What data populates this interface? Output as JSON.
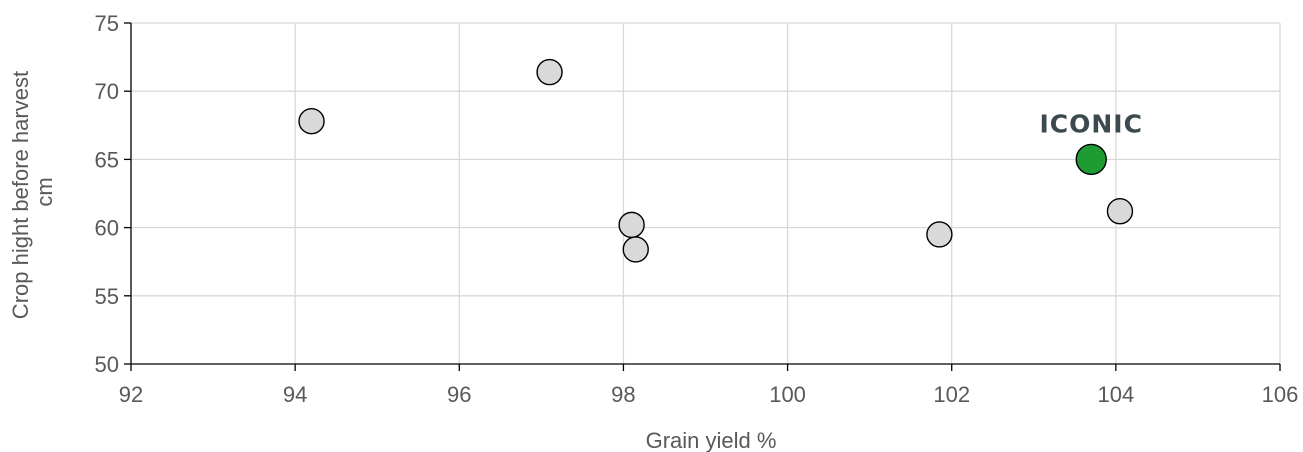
{
  "chart_data": {
    "type": "scatter",
    "xlabel": "Grain yield %",
    "ylabel": [
      "Crop hight before harvest",
      "cm"
    ],
    "xlim": [
      92,
      106
    ],
    "ylim": [
      50,
      75
    ],
    "xticks": [
      92,
      94,
      96,
      98,
      100,
      102,
      104,
      106
    ],
    "yticks": [
      50,
      55,
      60,
      65,
      70,
      75
    ],
    "grid": true,
    "series": [
      {
        "points": [
          {
            "x": 94.2,
            "y": 67.8
          },
          {
            "x": 97.1,
            "y": 71.4
          },
          {
            "x": 98.1,
            "y": 60.2
          },
          {
            "x": 98.15,
            "y": 58.4
          },
          {
            "x": 101.85,
            "y": 59.5
          },
          {
            "x": 104.05,
            "y": 61.2
          }
        ],
        "color": "#d9d9d9"
      },
      {
        "name": "ICONIC",
        "points": [
          {
            "x": 103.7,
            "y": 65.0
          }
        ],
        "color": "#1e9b33"
      }
    ],
    "colors": {
      "grid": "#d9d9d9",
      "axis": "#000000",
      "marker_stroke": "#000000",
      "text": "#595959",
      "callout": "#3b4a4f"
    }
  }
}
